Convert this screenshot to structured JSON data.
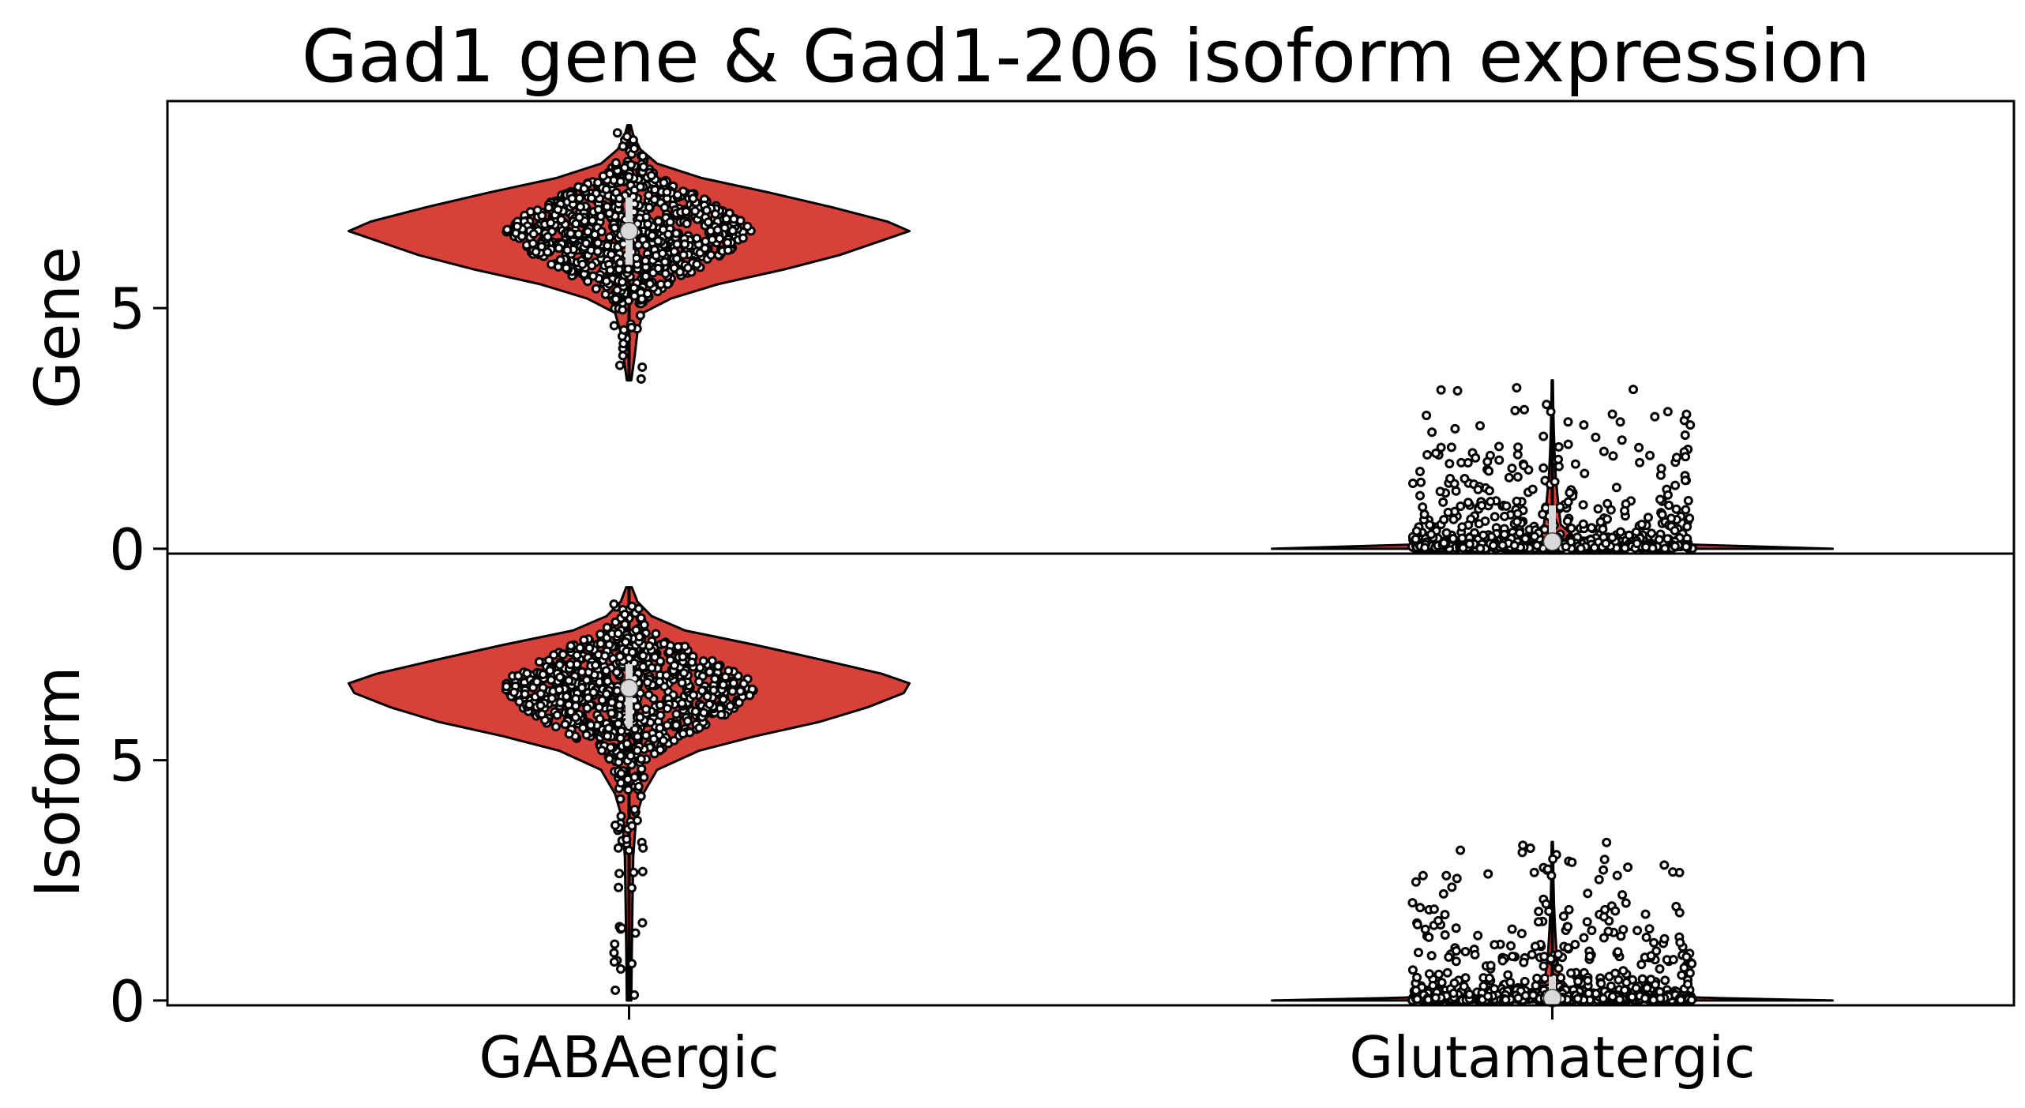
{
  "chart_data": {
    "type": "violin",
    "title": "Gad1 gene & Gad1-206 isoform expression",
    "categories": [
      "GABAergic",
      "Glutamatergic"
    ],
    "colors": {
      "violin_fill": "#d8403a",
      "violin_edge": "#000000",
      "point_edge": "#000000",
      "point_fill": "#ffffff",
      "median": "#d9d9d9"
    },
    "panels": [
      {
        "ylabel": "Gene",
        "yticks": [
          0,
          5
        ],
        "ylim": [
          -0.1,
          9.3
        ],
        "groups": [
          {
            "category": "GABAergic",
            "median": 6.6,
            "q1": 5.9,
            "q3": 7.3,
            "min": 3.5,
            "max": 8.8,
            "density": [
              [
                3.5,
                0.008
              ],
              [
                4.0,
                0.02
              ],
              [
                4.5,
                0.03
              ],
              [
                4.9,
                0.05
              ],
              [
                5.2,
                0.15
              ],
              [
                5.5,
                0.32
              ],
              [
                5.8,
                0.55
              ],
              [
                6.1,
                0.75
              ],
              [
                6.4,
                0.9
              ],
              [
                6.6,
                1.0
              ],
              [
                6.8,
                0.92
              ],
              [
                7.1,
                0.72
              ],
              [
                7.4,
                0.5
              ],
              [
                7.7,
                0.26
              ],
              [
                8.0,
                0.1
              ],
              [
                8.3,
                0.04
              ],
              [
                8.6,
                0.015
              ],
              [
                8.8,
                0.006
              ]
            ]
          },
          {
            "category": "Glutamatergic",
            "median": 0.15,
            "q1": 0.0,
            "q3": 0.9,
            "min": 0.0,
            "max": 3.5,
            "density": [
              [
                0.0,
                1.0
              ],
              [
                0.05,
                0.72
              ],
              [
                0.12,
                0.3
              ],
              [
                0.25,
                0.08
              ],
              [
                0.5,
                0.03
              ],
              [
                1.0,
                0.02
              ],
              [
                1.5,
                0.012
              ],
              [
                2.0,
                0.008
              ],
              [
                2.5,
                0.005
              ],
              [
                3.0,
                0.003
              ],
              [
                3.5,
                0.002
              ]
            ]
          }
        ]
      },
      {
        "ylabel": "Isoform",
        "yticks": [
          0,
          5
        ],
        "ylim": [
          -0.1,
          9.3
        ],
        "groups": [
          {
            "category": "GABAergic",
            "median": 6.5,
            "q1": 5.7,
            "q3": 7.0,
            "min": 0.0,
            "max": 8.6,
            "density": [
              [
                0.0,
                0.008
              ],
              [
                1.0,
                0.01
              ],
              [
                2.0,
                0.012
              ],
              [
                3.0,
                0.015
              ],
              [
                3.8,
                0.025
              ],
              [
                4.3,
                0.05
              ],
              [
                4.8,
                0.1
              ],
              [
                5.2,
                0.25
              ],
              [
                5.5,
                0.45
              ],
              [
                5.8,
                0.68
              ],
              [
                6.1,
                0.85
              ],
              [
                6.4,
                0.98
              ],
              [
                6.6,
                1.0
              ],
              [
                6.8,
                0.9
              ],
              [
                7.1,
                0.68
              ],
              [
                7.4,
                0.45
              ],
              [
                7.7,
                0.2
              ],
              [
                8.0,
                0.08
              ],
              [
                8.3,
                0.03
              ],
              [
                8.6,
                0.01
              ]
            ]
          },
          {
            "category": "Glutamatergic",
            "median": 0.05,
            "q1": 0.0,
            "q3": 0.5,
            "min": 0.0,
            "max": 3.3,
            "density": [
              [
                0.0,
                1.0
              ],
              [
                0.05,
                0.6
              ],
              [
                0.12,
                0.2
              ],
              [
                0.25,
                0.06
              ],
              [
                0.5,
                0.025
              ],
              [
                1.0,
                0.015
              ],
              [
                1.5,
                0.01
              ],
              [
                2.0,
                0.006
              ],
              [
                2.5,
                0.004
              ],
              [
                3.0,
                0.003
              ],
              [
                3.3,
                0.002
              ]
            ]
          }
        ]
      }
    ]
  }
}
